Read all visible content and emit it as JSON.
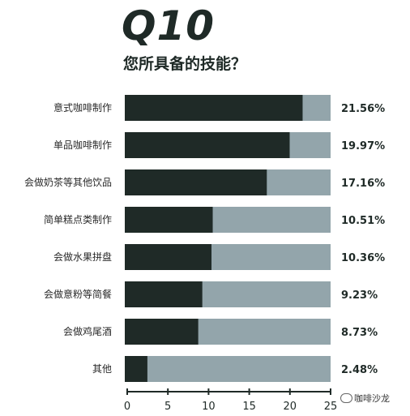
{
  "header": {
    "title": "Q10",
    "subtitle": "您所具备的技能？"
  },
  "watermark": {
    "text": "咖啡沙龙",
    "icon": "wechat-icon"
  },
  "colors": {
    "bar": "#1f2a27",
    "track": "#93a5ab",
    "text": "#1f2a27"
  },
  "chart_data": {
    "type": "bar",
    "orientation": "horizontal",
    "categories": [
      "意式咖啡制作",
      "单品咖啡制作",
      "会做奶茶等其他饮品",
      "简单糕点类制作",
      "会做水果拼盘",
      "会做意粉等简餐",
      "会做鸡尾酒",
      "其他"
    ],
    "values": [
      21.56,
      19.97,
      17.16,
      10.51,
      10.36,
      9.23,
      8.73,
      2.48
    ],
    "value_labels": [
      "21.56%",
      "19.97%",
      "17.16%",
      "10.51%",
      "10.36%",
      "9.23%",
      "8.73%",
      "2.48%"
    ],
    "xticks": [
      "0",
      "5",
      "10",
      "15",
      "20",
      "25"
    ],
    "xlim": [
      0,
      25
    ],
    "title": "Q10",
    "subtitle": "您所具备的技能？",
    "xlabel": "",
    "ylabel": "",
    "grid": false
  }
}
